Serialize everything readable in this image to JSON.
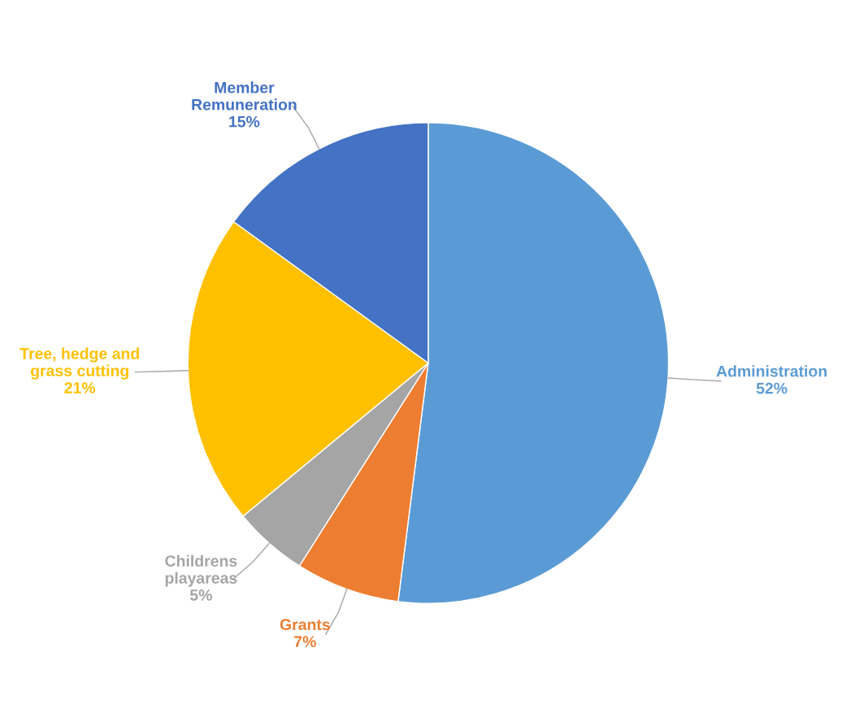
{
  "chart_data": {
    "type": "pie",
    "categories": [
      "Administration",
      "Grants",
      "Childrens\nplayareas",
      "Tree, hedge and\ngrass cutting",
      "Member\nRemuneration"
    ],
    "values": [
      52,
      7,
      5,
      21,
      15
    ],
    "value_labels": [
      "52%",
      "7%",
      "5%",
      "21%",
      "15%"
    ],
    "colors": [
      "#5b9bd5",
      "#ed7d31",
      "#a5a5a5",
      "#ffc000",
      "#4472c4"
    ],
    "legend": false
  }
}
